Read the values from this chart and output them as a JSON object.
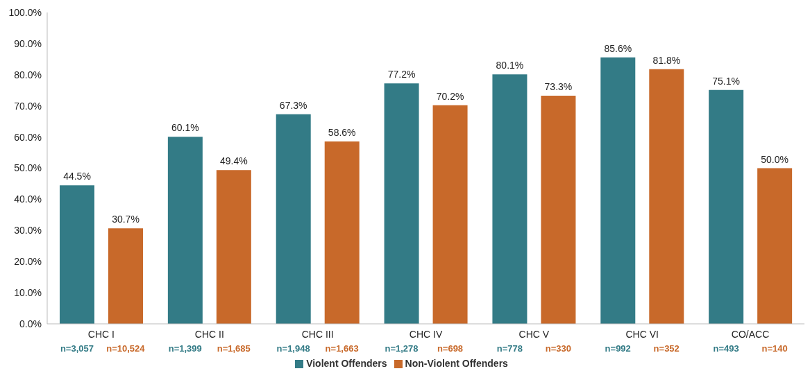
{
  "chart_data": {
    "type": "bar",
    "categories": [
      "CHC I",
      "CHC II",
      "CHC III",
      "CHC IV",
      "CHC V",
      "CHC VI",
      "CO/ACC"
    ],
    "series": [
      {
        "name": "Violent Offenders",
        "color": "#337b86",
        "values": [
          44.5,
          60.1,
          67.3,
          77.2,
          80.1,
          85.6,
          75.1
        ],
        "value_labels": [
          "44.5%",
          "60.1%",
          "67.3%",
          "77.2%",
          "80.1%",
          "85.6%",
          "75.1%"
        ]
      },
      {
        "name": "Non-Violent Offenders",
        "color": "#c8692a",
        "values": [
          30.7,
          49.4,
          58.6,
          70.2,
          73.3,
          81.8,
          50.0
        ],
        "value_labels": [
          "30.7%",
          "49.4%",
          "58.6%",
          "70.2%",
          "73.3%",
          "81.8%",
          "50.0%"
        ]
      }
    ],
    "annotations": [
      "n=3,057",
      "n=10,524",
      "n=1,399",
      "n=1,685",
      "n=1,948",
      "n=1,663",
      "n=1,278",
      "n=698",
      "n=778",
      "n=330",
      "n=992",
      "n=352",
      "n=493",
      "n=140"
    ],
    "ylim": [
      0,
      100
    ],
    "yticks": [
      {
        "value": 0,
        "label": "0.0%"
      },
      {
        "value": 10,
        "label": "10.0%"
      },
      {
        "value": 20,
        "label": "20.0%"
      },
      {
        "value": 30,
        "label": "30.0%"
      },
      {
        "value": 40,
        "label": "40.0%"
      },
      {
        "value": 50,
        "label": "50.0%"
      },
      {
        "value": 60,
        "label": "60.0%"
      },
      {
        "value": 70,
        "label": "70.0%"
      },
      {
        "value": 80,
        "label": "80.0%"
      },
      {
        "value": 90,
        "label": "90.0%"
      },
      {
        "value": 100,
        "label": "100.0%"
      }
    ],
    "grid": false,
    "legend": "bottom"
  }
}
